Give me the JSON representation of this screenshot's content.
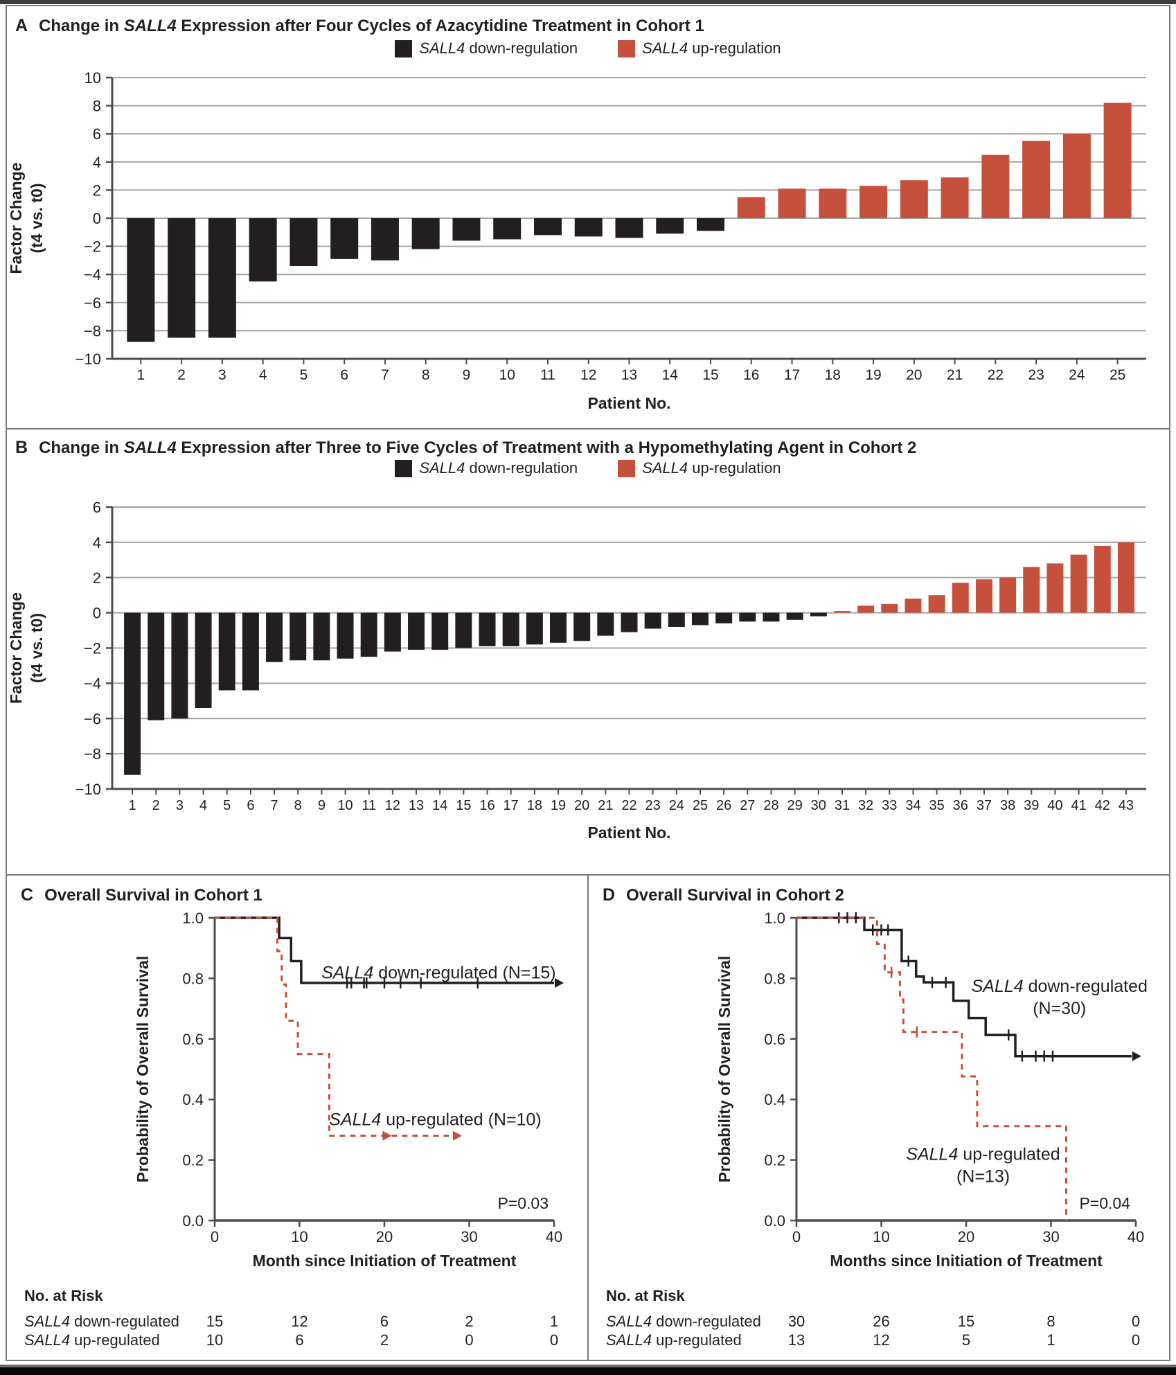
{
  "legend": {
    "italic": "SALL4",
    "down_rest": " down-regulation",
    "up_rest": " up-regulation",
    "down_color": "#231F20",
    "up_color": "#C5503B"
  },
  "panels": {
    "a": {
      "letter": "A",
      "title_prefix": "Change in ",
      "title_italic": "SALL4",
      "title_suffix": " Expression after Four Cycles of Azacytidine Treatment in Cohort 1"
    },
    "b": {
      "letter": "B",
      "title_prefix": "Change in ",
      "title_italic": "SALL4",
      "title_suffix": " Expression after Three to Five Cycles of Treatment with a Hypomethylating Agent in Cohort 2"
    },
    "c": {
      "letter": "C",
      "title": "Overall Survival in Cohort 1"
    },
    "d": {
      "letter": "D",
      "title": "Overall Survival in Cohort 2"
    }
  },
  "chart_data": [
    {
      "id": "a",
      "type": "bar",
      "title": "Change in SALL4 Expression after Four Cycles of Azacytidine Treatment in Cohort 1",
      "categories": [
        "1",
        "2",
        "3",
        "4",
        "5",
        "6",
        "7",
        "8",
        "9",
        "10",
        "11",
        "12",
        "13",
        "14",
        "15",
        "16",
        "17",
        "18",
        "19",
        "20",
        "21",
        "22",
        "23",
        "24",
        "25"
      ],
      "values": [
        -8.8,
        -8.5,
        -8.5,
        -4.5,
        -3.4,
        -2.9,
        -3.0,
        -2.2,
        -1.6,
        -1.5,
        -1.2,
        -1.3,
        -1.4,
        -1.1,
        -0.9,
        1.5,
        2.1,
        2.1,
        2.3,
        2.7,
        2.9,
        4.5,
        5.5,
        6.0,
        8.2
      ],
      "xlabel": "Patient No.",
      "ylabel_lines": [
        "Factor Change",
        "(t4 vs. t0)"
      ],
      "ylim": [
        -10,
        10
      ],
      "ytick_step": 2,
      "negative_color": "#231F20",
      "positive_color": "#C5503B",
      "grid": true
    },
    {
      "id": "b",
      "type": "bar",
      "title": "Change in SALL4 Expression after Three to Five Cycles of Treatment with a Hypomethylating Agent in Cohort 2",
      "categories": [
        "1",
        "2",
        "3",
        "4",
        "5",
        "6",
        "7",
        "8",
        "9",
        "10",
        "11",
        "12",
        "13",
        "14",
        "15",
        "16",
        "17",
        "18",
        "19",
        "20",
        "21",
        "22",
        "23",
        "24",
        "25",
        "26",
        "27",
        "28",
        "29",
        "30",
        "31",
        "32",
        "33",
        "34",
        "35",
        "36",
        "37",
        "38",
        "39",
        "40",
        "41",
        "42",
        "43"
      ],
      "values": [
        -9.2,
        -6.1,
        -6.0,
        -5.4,
        -4.4,
        -4.4,
        -2.8,
        -2.7,
        -2.7,
        -2.6,
        -2.5,
        -2.2,
        -2.1,
        -2.1,
        -2.0,
        -1.9,
        -1.9,
        -1.8,
        -1.7,
        -1.6,
        -1.3,
        -1.1,
        -0.9,
        -0.8,
        -0.7,
        -0.6,
        -0.5,
        -0.5,
        -0.4,
        -0.2,
        0.1,
        0.4,
        0.5,
        0.8,
        1.0,
        1.7,
        1.9,
        2.0,
        2.6,
        2.8,
        3.3,
        3.8,
        4.0
      ],
      "xlabel": "Patient No.",
      "ylabel_lines": [
        "Factor Change",
        "(t4 vs. t0)"
      ],
      "ylim": [
        -10,
        6
      ],
      "ytick_step": 2,
      "negative_color": "#231F20",
      "positive_color": "#C5503B",
      "grid": true
    },
    {
      "id": "c",
      "type": "km",
      "title": "Overall Survival in Cohort 1",
      "xlabel": "Month since Initiation of Treatment",
      "ylabel": "Probability of Overall Survival",
      "xlim": [
        0,
        40
      ],
      "xticks": [
        0,
        10,
        20,
        30,
        40
      ],
      "yticks": [
        0.0,
        0.2,
        0.4,
        0.6,
        0.8,
        1.0
      ],
      "p_value": "P=0.03",
      "legend_position": "inline-labels",
      "series": [
        {
          "name": "SALL4 down-regulated",
          "color": "#231F20",
          "dash": "solid",
          "points": [
            [
              0,
              1
            ],
            [
              7.6,
              1
            ],
            [
              7.6,
              0.933
            ],
            [
              9,
              0.933
            ],
            [
              9,
              0.857
            ],
            [
              10.2,
              0.857
            ],
            [
              10.2,
              0.785
            ],
            [
              40,
              0.785
            ]
          ],
          "censors": [
            [
              15.6,
              0.785
            ],
            [
              16.1,
              0.785
            ],
            [
              17.6,
              0.785
            ],
            [
              17.9,
              0.785
            ],
            [
              20,
              0.785
            ],
            [
              21.9,
              0.785
            ],
            [
              24.3,
              0.785
            ],
            [
              31,
              0.785
            ]
          ],
          "arrows": [
            [
              40,
              0.785
            ]
          ],
          "label_lines": [
            {
              "italic": "SALL4",
              "rest": " down-regulated (N=15)"
            }
          ],
          "label_at": [
            26.4,
            0.8
          ]
        },
        {
          "name": "SALL4 up-regulated",
          "color": "#C5503B",
          "dash": "dashed",
          "points": [
            [
              0,
              1
            ],
            [
              7.4,
              1
            ],
            [
              7.4,
              0.89
            ],
            [
              7.9,
              0.89
            ],
            [
              7.9,
              0.78
            ],
            [
              8.4,
              0.78
            ],
            [
              8.4,
              0.66
            ],
            [
              9.8,
              0.66
            ],
            [
              9.8,
              0.55
            ],
            [
              13.5,
              0.55
            ],
            [
              13.5,
              0.28
            ],
            [
              28,
              0.28
            ]
          ],
          "censors": [],
          "arrows": [
            [
              19.7,
              0.28
            ],
            [
              28,
              0.28
            ]
          ],
          "label_lines": [
            {
              "italic": "SALL4",
              "rest": " up-regulated (N=10)"
            }
          ],
          "label_at": [
            26,
            0.315
          ]
        }
      ],
      "risk_table": {
        "title": "No. at Risk",
        "months": [
          0,
          10,
          20,
          30,
          40
        ],
        "rows": [
          {
            "label_italic": "SALL4",
            "label_rest": " down-regulated",
            "values": [
              "15",
              "12",
              "6",
              "2",
              "1"
            ]
          },
          {
            "label_italic": "SALL4",
            "label_rest": " up-regulated",
            "values": [
              "10",
              "6",
              "2",
              "0",
              "0"
            ]
          }
        ]
      }
    },
    {
      "id": "d",
      "type": "km",
      "title": "Overall Survival in Cohort 2",
      "xlabel": "Months since Initiation of Treatment",
      "ylabel": "Probability of Overall Survival",
      "xlim": [
        0,
        40
      ],
      "xticks": [
        0,
        10,
        20,
        30,
        40
      ],
      "yticks": [
        0.0,
        0.2,
        0.4,
        0.6,
        0.8,
        1.0
      ],
      "p_value": "P=0.04",
      "legend_position": "inline-labels",
      "series": [
        {
          "name": "SALL4 down-regulated",
          "color": "#231F20",
          "dash": "solid",
          "points": [
            [
              0,
              1
            ],
            [
              8,
              1
            ],
            [
              8,
              0.96
            ],
            [
              12.4,
              0.96
            ],
            [
              12.4,
              0.857
            ],
            [
              14.1,
              0.857
            ],
            [
              14.1,
              0.806
            ],
            [
              15,
              0.806
            ],
            [
              15,
              0.787
            ],
            [
              18.5,
              0.787
            ],
            [
              18.5,
              0.726
            ],
            [
              20.3,
              0.726
            ],
            [
              20.3,
              0.669
            ],
            [
              22.3,
              0.669
            ],
            [
              22.3,
              0.613
            ],
            [
              25.8,
              0.613
            ],
            [
              25.8,
              0.543
            ],
            [
              39.5,
              0.543
            ]
          ],
          "censors": [
            [
              5,
              1
            ],
            [
              6,
              1
            ],
            [
              7,
              1
            ],
            [
              9,
              0.96
            ],
            [
              10,
              0.96
            ],
            [
              10.8,
              0.96
            ],
            [
              13.2,
              0.857
            ],
            [
              16,
              0.787
            ],
            [
              17.6,
              0.787
            ],
            [
              25,
              0.613
            ],
            [
              26.6,
              0.543
            ],
            [
              28.2,
              0.543
            ],
            [
              29.2,
              0.543
            ],
            [
              30.2,
              0.543
            ]
          ],
          "arrows": [
            [
              39.5,
              0.543
            ]
          ],
          "label_lines": [
            {
              "italic": "SALL4",
              "rest": " down-regulated"
            },
            {
              "rest": "(N=30)"
            }
          ],
          "label_at": [
            31,
            0.755
          ]
        },
        {
          "name": "SALL4 up-regulated",
          "color": "#C5503B",
          "dash": "dashed",
          "points": [
            [
              0,
              1
            ],
            [
              9.5,
              1
            ],
            [
              9.5,
              0.914
            ],
            [
              10.4,
              0.914
            ],
            [
              10.4,
              0.82
            ],
            [
              12.2,
              0.82
            ],
            [
              12.2,
              0.73
            ],
            [
              12.6,
              0.73
            ],
            [
              12.6,
              0.623
            ],
            [
              19.5,
              0.623
            ],
            [
              19.5,
              0.476
            ],
            [
              21.3,
              0.476
            ],
            [
              21.3,
              0.312
            ],
            [
              31.8,
              0.312
            ],
            [
              31.8,
              0
            ]
          ],
          "censors": [
            [
              11.2,
              0.82
            ],
            [
              14.2,
              0.623
            ]
          ],
          "arrows": [],
          "label_lines": [
            {
              "italic": "SALL4",
              "rest": " up-regulated"
            },
            {
              "rest": "(N=13)"
            }
          ],
          "label_at": [
            22,
            0.2
          ]
        }
      ],
      "risk_table": {
        "title": "No. at Risk",
        "months": [
          0,
          10,
          20,
          30,
          40
        ],
        "rows": [
          {
            "label_italic": "SALL4",
            "label_rest": " down-regulated",
            "values": [
              "30",
              "26",
              "15",
              "8",
              "0"
            ]
          },
          {
            "label_italic": "SALL4",
            "label_rest": " up-regulated",
            "values": [
              "13",
              "12",
              "5",
              "1",
              "0"
            ]
          }
        ]
      }
    }
  ]
}
